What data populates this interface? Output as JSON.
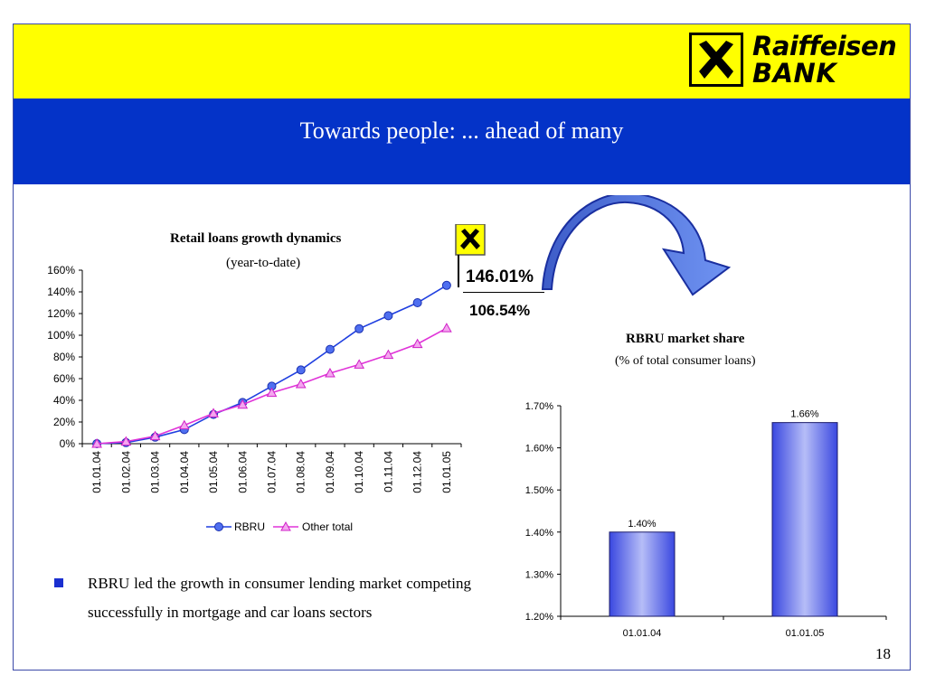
{
  "header": {
    "title": "Towards people: ... ahead of many",
    "logo_line1": "Raiffeisen",
    "logo_line2": "BANK",
    "logo_icon": "raiffeisen-crossed-horse-heads-icon"
  },
  "annotations": {
    "rbru_value": "146.01%",
    "other_value": "106.54%",
    "flag_icon": "raiffeisen-flag-icon",
    "arrow_icon": "curved-arrow-icon"
  },
  "line_chart": {
    "title": "Retail loans growth dynamics",
    "subtitle": "(year-to-date)",
    "y_ticks": [
      "0%",
      "20%",
      "40%",
      "60%",
      "80%",
      "100%",
      "120%",
      "140%",
      "160%"
    ],
    "legend_rbru": "RBRU",
    "legend_other": "Other total"
  },
  "bar_chart": {
    "title": "RBRU market share",
    "subtitle": "(% of total consumer loans)",
    "y_ticks": [
      "1.20%",
      "1.30%",
      "1.40%",
      "1.50%",
      "1.60%",
      "1.70%"
    ],
    "bar_labels": [
      "1.40%",
      "1.66%"
    ]
  },
  "bullet": {
    "text": "RBRU led the growth in consumer lending market competing successfully in mortgage and car loans sectors"
  },
  "page_number": "18",
  "colors": {
    "yellow": "#ffff00",
    "blue": "#0433c8",
    "rbru_series": "#1f3fe0",
    "other_series": "#e033d8",
    "bar_fill": "#8f98f2"
  },
  "chart_data": [
    {
      "type": "line",
      "title": "Retail loans growth dynamics",
      "subtitle": "(year-to-date)",
      "x": [
        "01.01.04",
        "01.02.04",
        "01.03.04",
        "01.04.04",
        "01.05.04",
        "01.06.04",
        "01.07.04",
        "01.08.04",
        "01.09.04",
        "01.10.04",
        "01.11.04",
        "01.12.04",
        "01.01.05"
      ],
      "series": [
        {
          "name": "RBRU",
          "values": [
            0,
            1,
            6,
            13,
            27,
            38,
            53,
            68,
            87,
            106,
            118,
            130,
            146.01
          ]
        },
        {
          "name": "Other total",
          "values": [
            0,
            2,
            7,
            17,
            28,
            36,
            47,
            55,
            65,
            73,
            82,
            92,
            106.54
          ]
        }
      ],
      "ylim": [
        0,
        160
      ],
      "y_unit": "%",
      "legend": "bottom",
      "grid": false
    },
    {
      "type": "bar",
      "title": "RBRU market share",
      "subtitle": "(% of total consumer loans)",
      "categories": [
        "01.01.04",
        "01.01.05"
      ],
      "values": [
        1.4,
        1.66
      ],
      "ylim": [
        1.2,
        1.7
      ],
      "y_unit": "%",
      "grid": false
    }
  ]
}
